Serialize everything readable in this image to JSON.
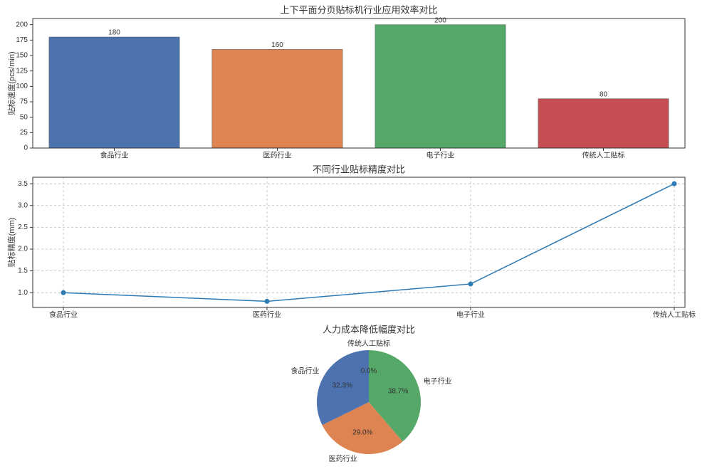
{
  "chart_data": [
    {
      "type": "bar",
      "title": "上下平面分页贴标机行业应用效率对比",
      "ylabel": "贴标速度(pcs/min)",
      "categories": [
        "食品行业",
        "医药行业",
        "电子行业",
        "传统人工贴标"
      ],
      "values": [
        180,
        160,
        200,
        80
      ],
      "colors": [
        "#4c72b0",
        "#dd8452",
        "#55a868",
        "#c44e52"
      ],
      "ylim": [
        0,
        210
      ],
      "yticks": [
        0,
        25,
        50,
        75,
        100,
        125,
        150,
        175,
        200
      ],
      "grid": false
    },
    {
      "type": "line",
      "title": "不同行业贴标精度对比",
      "ylabel": "贴标精度(mm)",
      "categories": [
        "食品行业",
        "医药行业",
        "电子行业",
        "传统人工贴标"
      ],
      "values": [
        1.0,
        0.8,
        1.2,
        3.5
      ],
      "color": "#2e7ab4",
      "ylim": [
        0.66,
        3.65
      ],
      "yticks": [
        {
          "value": 1,
          "label": "1.0"
        },
        {
          "value": 1.5,
          "label": "1.5"
        },
        {
          "value": 2,
          "label": "2.0"
        },
        {
          "value": 2.5,
          "label": "2.5"
        },
        {
          "value": 3,
          "label": "3.0"
        },
        {
          "value": 3.5,
          "label": "3.5"
        }
      ],
      "grid": true
    },
    {
      "type": "pie",
      "title": "人力成本降低幅度对比",
      "categories": [
        "食品行业",
        "医药行业",
        "电子行业",
        "传统人工贴标"
      ],
      "values": [
        32.3,
        29.0,
        38.7,
        0.0
      ],
      "value_labels": [
        "32.3%",
        "29.0%",
        "38.7%",
        "0.0%"
      ],
      "colors": [
        "#4c72b0",
        "#dd8452",
        "#55a868",
        "#c44e52"
      ]
    }
  ]
}
